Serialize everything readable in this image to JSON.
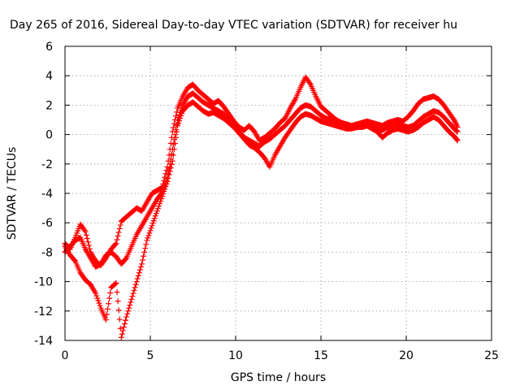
{
  "chart_data": {
    "type": "scatter",
    "title": "Day 265 of 2016, Sidereal Day-to-day VTEC variation (SDTVAR) for receiver hu",
    "xlabel": "GPS time / hours",
    "ylabel": "SDTVAR / TECUs",
    "xlim": [
      0,
      25
    ],
    "ylim": [
      -14,
      6
    ],
    "xticks": [
      "0",
      "5",
      "10",
      "15",
      "20",
      "25"
    ],
    "yticks": [
      "-14",
      "-12",
      "-10",
      "-8",
      "-6",
      "-4",
      "-2",
      "0",
      "2",
      "4",
      "6"
    ],
    "grid": true,
    "marker": "plus",
    "color": "#ff0000",
    "series": [
      {
        "x": [
          0.0,
          0.3,
          0.6,
          0.9,
          1.2,
          1.5,
          1.8,
          2.1,
          2.4,
          2.7,
          3.0,
          3.3,
          3.6,
          3.9,
          4.2,
          4.5,
          4.8,
          5.1,
          5.4,
          5.7,
          6.0,
          6.3,
          6.6,
          6.9,
          7.2,
          7.5,
          7.8,
          8.1,
          8.4,
          8.7,
          9.0,
          9.3,
          9.6,
          9.9,
          10.2,
          10.5,
          10.8,
          11.1,
          11.4,
          11.7,
          12.0,
          12.3,
          12.6,
          12.9,
          13.2,
          13.5,
          13.8,
          14.1,
          14.4,
          14.7,
          15.0,
          15.3,
          15.6,
          15.9,
          16.2,
          16.5,
          16.8,
          17.1,
          17.4,
          17.7,
          18.0,
          18.3,
          18.6,
          18.9,
          19.2,
          19.5,
          19.8,
          20.1,
          20.4,
          20.7,
          21.0,
          21.3,
          21.6,
          21.9,
          22.2,
          22.5,
          22.8,
          23.0
        ],
        "values": [
          -7.4,
          -7.8,
          -7.0,
          -6.1,
          -6.6,
          -8.0,
          -8.6,
          -8.9,
          -8.4,
          -7.8,
          -7.4,
          -5.9,
          -5.6,
          -5.3,
          -5.0,
          -5.2,
          -4.6,
          -4.0,
          -3.8,
          -3.6,
          -2.2,
          0.2,
          1.8,
          2.6,
          3.2,
          3.4,
          3.0,
          2.7,
          2.4,
          2.1,
          2.3,
          1.9,
          1.4,
          0.9,
          0.5,
          0.3,
          0.6,
          0.2,
          -0.4,
          -0.2,
          0.1,
          0.4,
          0.8,
          1.1,
          1.8,
          2.4,
          3.2,
          3.9,
          3.4,
          2.6,
          1.9,
          1.6,
          1.3,
          1.0,
          0.8,
          0.7,
          0.6,
          0.7,
          0.8,
          0.9,
          0.8,
          0.7,
          0.6,
          0.8,
          0.9,
          1.0,
          0.9,
          1.2,
          1.6,
          2.1,
          2.4,
          2.5,
          2.6,
          2.4,
          2.0,
          1.5,
          1.0,
          0.5
        ]
      },
      {
        "x": [
          0.0,
          0.3,
          0.6,
          0.9,
          1.2,
          1.5,
          1.8,
          2.1,
          2.4,
          2.7,
          3.0,
          3.3,
          3.6,
          3.9,
          4.2,
          4.5,
          4.8,
          5.1,
          5.4,
          5.7,
          6.0,
          6.3,
          6.6,
          6.9,
          7.2,
          7.5,
          7.8,
          8.1,
          8.4,
          8.7,
          9.0,
          9.3,
          9.6,
          9.9,
          10.2,
          10.5,
          10.8,
          11.1,
          11.4,
          11.7,
          12.0,
          12.3,
          12.6,
          12.9,
          13.2,
          13.5,
          13.8,
          14.1,
          14.4,
          14.7,
          15.0,
          15.3,
          15.6,
          15.9,
          16.2,
          16.5,
          16.8,
          17.1,
          17.4,
          17.7,
          18.0,
          18.3,
          18.6,
          18.9,
          19.2,
          19.5,
          19.8,
          20.1,
          20.4,
          20.7,
          21.0,
          21.3,
          21.6,
          21.9,
          22.2,
          22.5,
          22.8,
          23.0
        ],
        "values": [
          -8.0,
          -7.6,
          -7.2,
          -7.0,
          -7.8,
          -8.4,
          -9.0,
          -8.8,
          -8.2,
          -8.0,
          -8.3,
          -8.8,
          -8.4,
          -7.6,
          -6.8,
          -6.2,
          -5.6,
          -5.0,
          -4.4,
          -3.9,
          -3.0,
          -1.0,
          1.0,
          2.0,
          2.6,
          2.8,
          2.5,
          2.2,
          2.0,
          1.8,
          1.6,
          1.4,
          1.0,
          0.6,
          0.2,
          -0.2,
          -0.4,
          -0.6,
          -0.8,
          -0.5,
          -0.3,
          0.0,
          0.3,
          0.6,
          1.0,
          1.4,
          1.8,
          2.0,
          1.9,
          1.6,
          1.3,
          1.1,
          1.0,
          0.9,
          0.8,
          0.6,
          0.5,
          0.6,
          0.7,
          0.8,
          0.6,
          0.4,
          0.3,
          0.5,
          0.6,
          0.7,
          0.6,
          0.5,
          0.6,
          0.9,
          1.2,
          1.4,
          1.6,
          1.5,
          1.2,
          0.8,
          0.4,
          0.2
        ]
      },
      {
        "x": [
          0.0,
          0.3,
          0.6,
          0.9,
          1.2,
          1.5,
          1.8,
          2.1,
          2.4,
          2.7,
          3.0,
          3.3,
          3.6,
          3.9,
          4.2,
          4.5,
          4.8,
          5.1,
          5.4,
          5.7,
          6.0,
          6.3,
          6.6,
          6.9,
          7.2,
          7.5,
          7.8,
          8.1,
          8.4,
          8.7,
          9.0,
          9.3,
          9.6,
          9.9,
          10.2,
          10.5,
          10.8,
          11.1,
          11.4,
          11.7,
          12.0,
          12.3,
          12.6,
          12.9,
          13.2,
          13.5,
          13.8,
          14.1,
          14.4,
          14.7,
          15.0,
          15.3,
          15.6,
          15.9,
          16.2,
          16.5,
          16.8,
          17.1,
          17.4,
          17.7,
          18.0,
          18.3,
          18.6,
          18.9,
          19.2,
          19.5,
          19.8,
          20.1,
          20.4,
          20.7,
          21.0,
          21.3,
          21.6,
          21.9,
          22.2,
          22.5,
          22.8,
          23.0
        ],
        "values": [
          -7.6,
          -8.2,
          -8.6,
          -9.4,
          -9.9,
          -10.2,
          -10.8,
          -11.8,
          -12.6,
          -10.4,
          -10.1,
          -13.8,
          -12.4,
          -11.2,
          -10.0,
          -8.8,
          -7.2,
          -6.2,
          -5.2,
          -4.2,
          -3.2,
          -1.8,
          0.6,
          1.6,
          2.0,
          2.2,
          1.9,
          1.6,
          1.4,
          1.5,
          1.3,
          1.1,
          0.8,
          0.5,
          0.1,
          -0.3,
          -0.7,
          -0.9,
          -1.2,
          -1.6,
          -2.2,
          -1.4,
          -0.8,
          -0.2,
          0.3,
          0.8,
          1.2,
          1.4,
          1.3,
          1.1,
          0.9,
          0.8,
          0.7,
          0.6,
          0.5,
          0.4,
          0.4,
          0.5,
          0.5,
          0.6,
          0.4,
          0.2,
          -0.2,
          0.1,
          0.3,
          0.4,
          0.3,
          0.2,
          0.3,
          0.5,
          0.8,
          1.0,
          1.2,
          1.0,
          0.6,
          0.2,
          -0.1,
          -0.4
        ]
      }
    ]
  }
}
